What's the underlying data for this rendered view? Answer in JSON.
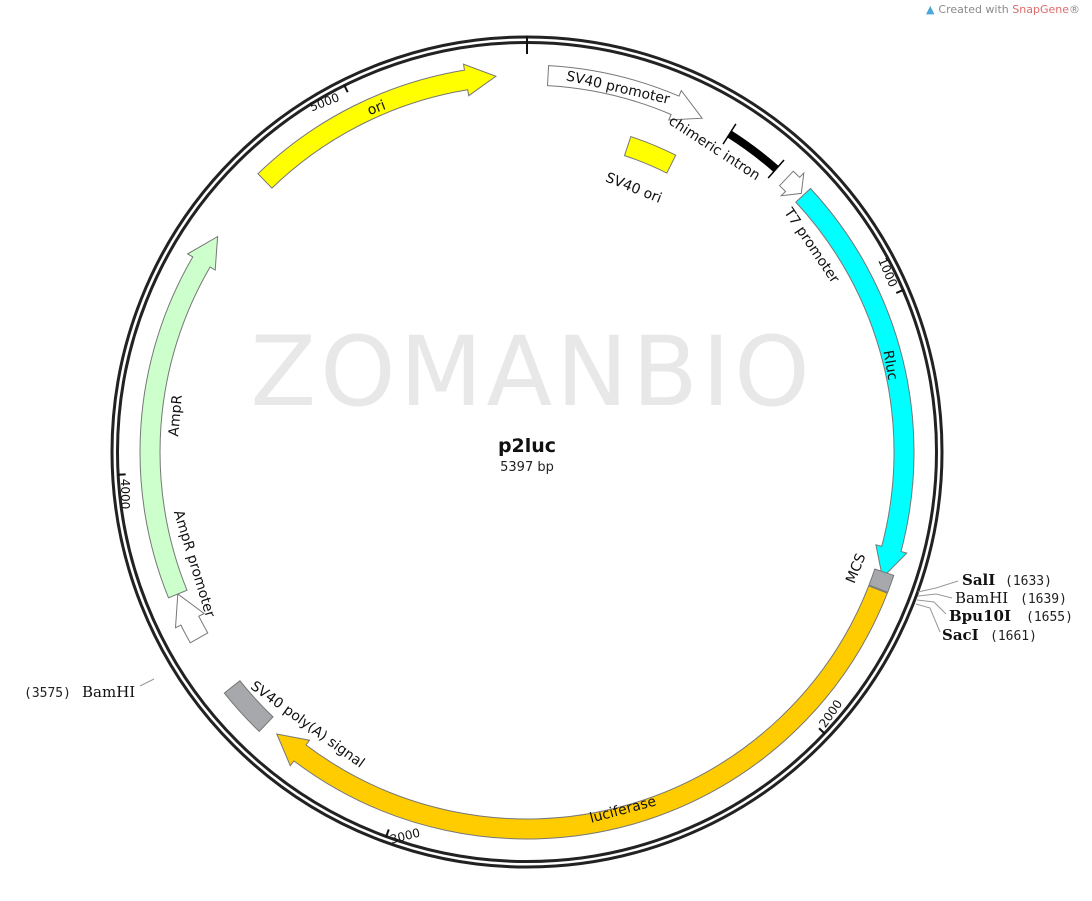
{
  "credit": {
    "prefix": "Created with ",
    "brand": "SnapGene",
    "suffix": "®",
    "icon": "snapgene-logo-icon"
  },
  "watermark": "ZOMANBIO",
  "plasmid": {
    "name": "p2luc",
    "length_label": "5397 bp",
    "length": 5397
  },
  "ticks": [
    {
      "bp": 1000,
      "label": "1000"
    },
    {
      "bp": 2000,
      "label": "2000"
    },
    {
      "bp": 3000,
      "label": "3000"
    },
    {
      "bp": 4000,
      "label": "4000"
    },
    {
      "bp": 5000,
      "label": "5000"
    }
  ],
  "features": [
    {
      "name": "SV40 promoter",
      "start": 48,
      "end": 415,
      "type": "arrow",
      "color": "#ffffff"
    },
    {
      "name": "SV40 ori",
      "start": 273,
      "end": 399,
      "type": "box",
      "color": "#ffff00"
    },
    {
      "name": "chimeric intron",
      "start": 487,
      "end": 620,
      "type": "intron",
      "color": "#000000"
    },
    {
      "name": "T7 promoter",
      "start": 652,
      "end": 700,
      "type": "arrow",
      "color": "#ffffff"
    },
    {
      "name": "Rluc",
      "start": 706,
      "end": 1641,
      "type": "arrow",
      "color": "#00ffff"
    },
    {
      "name": "MCS",
      "start": 1628,
      "end": 1668,
      "type": "box",
      "color": "#a6a8ab"
    },
    {
      "name": "luciferase",
      "start": 1670,
      "end": 3322,
      "type": "arrow",
      "color": "#ffcc00"
    },
    {
      "name": "SV40 poly(A) signal",
      "start": 3355,
      "end": 3470,
      "type": "box",
      "color": "#a6a8ab"
    },
    {
      "name": "AmpR promoter",
      "start": 3605,
      "end": 3716,
      "type": "arrow",
      "color": "#ffffff"
    },
    {
      "name": "AmpR",
      "start": 3716,
      "end": 4570,
      "type": "arrow",
      "color": "#ccffcc"
    },
    {
      "name": "ori",
      "start": 4737,
      "end": 5326,
      "type": "arrow",
      "color": "#ffff00"
    }
  ],
  "enzymes": [
    {
      "name": "SalI",
      "position": "(1633)",
      "bold": true
    },
    {
      "name": "BamHI",
      "position": "(1639)",
      "bold": false
    },
    {
      "name": "Bpu10I",
      "position": "(1655)",
      "bold": true
    },
    {
      "name": "SacI",
      "position": "(1661)",
      "bold": true
    },
    {
      "name": "BamHI",
      "position": "(3575)",
      "bold": false
    }
  ]
}
